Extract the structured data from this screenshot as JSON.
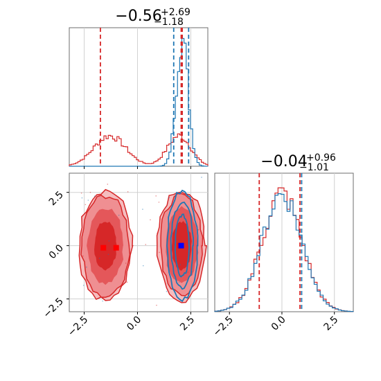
{
  "chart_data": [
    {
      "type": "histogram",
      "panel": "marginal-param-1",
      "title": {
        "main": "−0.56",
        "sup": "+2.69",
        "sub": "−1.18"
      },
      "xlim": [
        -3.2,
        3.3
      ],
      "grid": true,
      "series": [
        {
          "color": "#d62728",
          "bimodal": true,
          "modes": [
            {
              "center": -1.3,
              "width": 0.75,
              "peak": 0.22
            },
            {
              "center": 1.95,
              "width": 0.55,
              "peak": 0.22
            }
          ],
          "quantile_lines": [
            -1.74,
            2.05
          ]
        },
        {
          "color": "#1f77b4",
          "modes": [
            {
              "center": 2.1,
              "width": 0.28,
              "peak": 0.92
            }
          ],
          "quantile_lines": [
            1.7,
            2.4
          ]
        }
      ],
      "shared_median_line": 2.1
    },
    {
      "type": "contour",
      "panel": "joint",
      "xlim": [
        -3.2,
        3.3
      ],
      "ylim": [
        -3.1,
        3.4
      ],
      "xticks": [
        "−2.5",
        "0.0",
        "2.5"
      ],
      "yticks": [
        "2.5",
        "0.0",
        "−2.5"
      ],
      "grid": true,
      "series": [
        {
          "color": "#d62728",
          "blobs": [
            {
              "cx": -1.5,
              "cy": 0.0
            },
            {
              "cx": 2.0,
              "cy": 0.0
            }
          ],
          "markers": [
            [
              -1.6,
              -0.1
            ],
            [
              -1.0,
              -0.1
            ],
            [
              2.0,
              0.0
            ]
          ]
        },
        {
          "color": "#1f77b4",
          "blobs": [
            {
              "cx": 2.1,
              "cy": 0.0
            }
          ],
          "markers": [
            [
              2.05,
              0.0
            ]
          ]
        }
      ]
    },
    {
      "type": "histogram",
      "panel": "marginal-param-2",
      "title": {
        "main": "−0.04",
        "sup": "+0.96",
        "sub": "−1.01"
      },
      "xlim": [
        -3.2,
        3.4
      ],
      "xticks": [
        "−2.5",
        "0.0",
        "2.5"
      ],
      "grid": true,
      "series": [
        {
          "color": "#d62728",
          "modes": [
            {
              "center": 0.0,
              "width": 0.95,
              "peak": 0.85
            }
          ],
          "quantile_lines": [
            -1.08,
            0.86
          ]
        },
        {
          "color": "#1f77b4",
          "modes": [
            {
              "center": 0.0,
              "width": 0.95,
              "peak": 0.85
            }
          ],
          "quantile_lines": [
            0.94
          ]
        }
      ]
    }
  ]
}
